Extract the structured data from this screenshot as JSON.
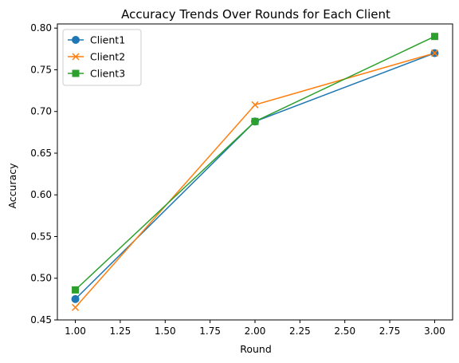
{
  "chart_data": {
    "type": "line",
    "title": "Accuracy Trends Over Rounds for Each Client",
    "xlabel": "Round",
    "ylabel": "Accuracy",
    "xlim": [
      0.9,
      3.1
    ],
    "ylim": [
      0.45,
      0.805
    ],
    "xticks": [
      1.0,
      1.25,
      1.5,
      1.75,
      2.0,
      2.25,
      2.5,
      2.75,
      3.0
    ],
    "xtick_labels": [
      "1.00",
      "1.25",
      "1.50",
      "1.75",
      "2.00",
      "2.25",
      "2.50",
      "2.75",
      "3.00"
    ],
    "yticks": [
      0.45,
      0.5,
      0.55,
      0.6,
      0.65,
      0.7,
      0.75,
      0.8
    ],
    "ytick_labels": [
      "0.45",
      "0.50",
      "0.55",
      "0.60",
      "0.65",
      "0.70",
      "0.75",
      "0.80"
    ],
    "grid": false,
    "legend_position": "top-left",
    "x": [
      1,
      2,
      3
    ],
    "series": [
      {
        "name": "Client1",
        "marker": "circle",
        "color": "#1f77b4",
        "values": [
          0.475,
          0.688,
          0.77
        ]
      },
      {
        "name": "Client2",
        "marker": "x",
        "color": "#ff7f0e",
        "values": [
          0.465,
          0.708,
          0.77
        ]
      },
      {
        "name": "Client3",
        "marker": "square",
        "color": "#2ca02c",
        "values": [
          0.486,
          0.688,
          0.79
        ]
      }
    ]
  }
}
